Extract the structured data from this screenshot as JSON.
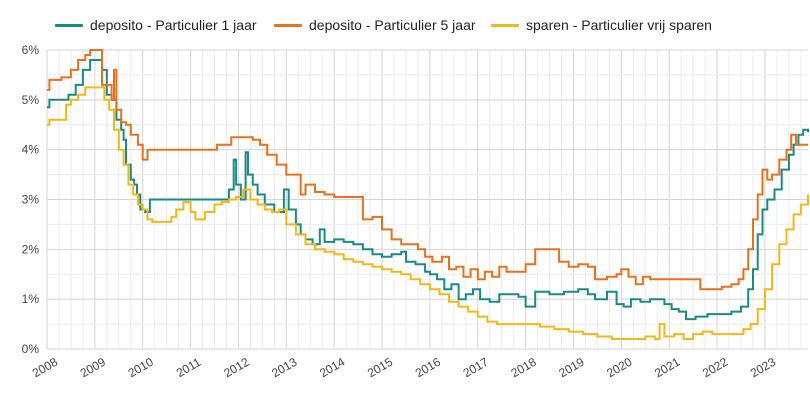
{
  "chart_data": {
    "type": "line",
    "title": "",
    "xlabel": "",
    "ylabel": "",
    "xlim": [
      2008,
      2023.9
    ],
    "ylim": [
      0,
      6
    ],
    "grid": true,
    "legend_position": "top",
    "y_ticks": [
      "0%",
      "1%",
      "2%",
      "3%",
      "4%",
      "5%",
      "6%"
    ],
    "x_ticks": [
      "2008",
      "2009",
      "2010",
      "2011",
      "2012",
      "2013",
      "2014",
      "2015",
      "2016",
      "2017",
      "2018",
      "2019",
      "2020",
      "2021",
      "2022",
      "2023"
    ],
    "series": [
      {
        "name": "deposito - Particulier 1 jaar",
        "color": "#1a8a86",
        "points": [
          [
            2008,
            4.85
          ],
          [
            2008.05,
            5.0
          ],
          [
            2008.3,
            5.0
          ],
          [
            2008.45,
            5.1
          ],
          [
            2008.6,
            5.3
          ],
          [
            2008.75,
            5.6
          ],
          [
            2008.9,
            5.8
          ],
          [
            2009.1,
            5.8
          ],
          [
            2009.15,
            5.6
          ],
          [
            2009.25,
            5.1
          ],
          [
            2009.35,
            5.0
          ],
          [
            2009.45,
            4.6
          ],
          [
            2009.55,
            4.4
          ],
          [
            2009.6,
            4.2
          ],
          [
            2009.65,
            3.7
          ],
          [
            2009.75,
            3.4
          ],
          [
            2009.82,
            3.3
          ],
          [
            2009.88,
            3.1
          ],
          [
            2009.95,
            2.8
          ],
          [
            2010.05,
            2.75
          ],
          [
            2010.15,
            3.0
          ],
          [
            2010.5,
            3.0
          ],
          [
            2010.85,
            3.0
          ],
          [
            2011.3,
            3.0
          ],
          [
            2011.5,
            3.0
          ],
          [
            2011.6,
            3.0
          ],
          [
            2011.8,
            3.2
          ],
          [
            2011.9,
            3.8
          ],
          [
            2011.95,
            3.3
          ],
          [
            2012.05,
            3.0
          ],
          [
            2012.15,
            3.95
          ],
          [
            2012.2,
            3.5
          ],
          [
            2012.3,
            3.3
          ],
          [
            2012.4,
            3.1
          ],
          [
            2012.55,
            2.9
          ],
          [
            2012.75,
            2.75
          ],
          [
            2012.95,
            3.2
          ],
          [
            2013.05,
            2.8
          ],
          [
            2013.2,
            2.5
          ],
          [
            2013.3,
            2.3
          ],
          [
            2013.4,
            2.2
          ],
          [
            2013.55,
            2.1
          ],
          [
            2013.7,
            2.4
          ],
          [
            2013.8,
            2.15
          ],
          [
            2014.0,
            2.2
          ],
          [
            2014.2,
            2.15
          ],
          [
            2014.4,
            2.1
          ],
          [
            2014.6,
            2.0
          ],
          [
            2014.8,
            1.9
          ],
          [
            2015.0,
            1.85
          ],
          [
            2015.2,
            1.9
          ],
          [
            2015.4,
            1.95
          ],
          [
            2015.5,
            1.75
          ],
          [
            2015.7,
            1.7
          ],
          [
            2015.9,
            1.55
          ],
          [
            2016.0,
            1.5
          ],
          [
            2016.15,
            1.4
          ],
          [
            2016.3,
            1.2
          ],
          [
            2016.45,
            1.3
          ],
          [
            2016.6,
            1.0
          ],
          [
            2016.75,
            1.1
          ],
          [
            2016.9,
            1.2
          ],
          [
            2017.05,
            1.0
          ],
          [
            2017.25,
            0.95
          ],
          [
            2017.45,
            1.1
          ],
          [
            2017.7,
            1.1
          ],
          [
            2017.85,
            1.05
          ],
          [
            2018.0,
            0.85
          ],
          [
            2018.2,
            1.15
          ],
          [
            2018.5,
            1.1
          ],
          [
            2018.8,
            1.15
          ],
          [
            2019.1,
            1.2
          ],
          [
            2019.3,
            1.1
          ],
          [
            2019.45,
            1.0
          ],
          [
            2019.7,
            1.15
          ],
          [
            2019.9,
            0.9
          ],
          [
            2020.05,
            0.85
          ],
          [
            2020.2,
            1.0
          ],
          [
            2020.4,
            0.95
          ],
          [
            2020.6,
            1.0
          ],
          [
            2020.9,
            0.9
          ],
          [
            2021.05,
            0.8
          ],
          [
            2021.2,
            0.75
          ],
          [
            2021.35,
            0.6
          ],
          [
            2021.55,
            0.65
          ],
          [
            2021.8,
            0.7
          ],
          [
            2022.1,
            0.7
          ],
          [
            2022.3,
            0.75
          ],
          [
            2022.5,
            0.85
          ],
          [
            2022.65,
            1.2
          ],
          [
            2022.75,
            1.6
          ],
          [
            2022.85,
            2.3
          ],
          [
            2022.95,
            2.8
          ],
          [
            2023.05,
            3.0
          ],
          [
            2023.2,
            3.2
          ],
          [
            2023.35,
            3.6
          ],
          [
            2023.5,
            3.9
          ],
          [
            2023.6,
            4.1
          ],
          [
            2023.7,
            4.3
          ],
          [
            2023.8,
            4.4
          ],
          [
            2023.9,
            4.35
          ]
        ]
      },
      {
        "name": "deposito - Particulier 5 jaar",
        "color": "#e8711f",
        "points": [
          [
            2008,
            5.2
          ],
          [
            2008.05,
            5.4
          ],
          [
            2008.3,
            5.45
          ],
          [
            2008.5,
            5.6
          ],
          [
            2008.65,
            5.8
          ],
          [
            2008.8,
            5.9
          ],
          [
            2008.9,
            6.0
          ],
          [
            2009.1,
            6.0
          ],
          [
            2009.15,
            5.3
          ],
          [
            2009.35,
            5.0
          ],
          [
            2009.4,
            5.6
          ],
          [
            2009.45,
            4.8
          ],
          [
            2009.55,
            4.55
          ],
          [
            2009.65,
            4.5
          ],
          [
            2009.75,
            4.3
          ],
          [
            2009.9,
            4.1
          ],
          [
            2010.0,
            3.8
          ],
          [
            2010.1,
            4.0
          ],
          [
            2010.5,
            4.0
          ],
          [
            2010.85,
            4.0
          ],
          [
            2011.3,
            4.0
          ],
          [
            2011.55,
            4.1
          ],
          [
            2011.7,
            4.1
          ],
          [
            2011.85,
            4.25
          ],
          [
            2012.05,
            4.25
          ],
          [
            2012.3,
            4.2
          ],
          [
            2012.45,
            4.1
          ],
          [
            2012.6,
            3.9
          ],
          [
            2012.8,
            3.7
          ],
          [
            2013.0,
            3.5
          ],
          [
            2013.2,
            3.5
          ],
          [
            2013.3,
            3.1
          ],
          [
            2013.4,
            3.3
          ],
          [
            2013.6,
            3.15
          ],
          [
            2013.8,
            3.1
          ],
          [
            2014.0,
            3.05
          ],
          [
            2014.3,
            3.05
          ],
          [
            2014.6,
            2.6
          ],
          [
            2014.8,
            2.65
          ],
          [
            2015.0,
            2.4
          ],
          [
            2015.2,
            2.2
          ],
          [
            2015.4,
            2.1
          ],
          [
            2015.6,
            2.1
          ],
          [
            2015.75,
            2.0
          ],
          [
            2015.9,
            1.85
          ],
          [
            2016.05,
            1.75
          ],
          [
            2016.25,
            1.85
          ],
          [
            2016.4,
            1.6
          ],
          [
            2016.55,
            1.65
          ],
          [
            2016.7,
            1.45
          ],
          [
            2016.85,
            1.6
          ],
          [
            2017.0,
            1.4
          ],
          [
            2017.15,
            1.55
          ],
          [
            2017.3,
            1.45
          ],
          [
            2017.45,
            1.65
          ],
          [
            2017.6,
            1.55
          ],
          [
            2017.8,
            1.55
          ],
          [
            2018.0,
            1.7
          ],
          [
            2018.2,
            2.0
          ],
          [
            2018.5,
            2.0
          ],
          [
            2018.7,
            1.75
          ],
          [
            2018.9,
            1.65
          ],
          [
            2019.1,
            1.7
          ],
          [
            2019.3,
            1.65
          ],
          [
            2019.45,
            1.4
          ],
          [
            2019.7,
            1.45
          ],
          [
            2019.9,
            1.5
          ],
          [
            2020.0,
            1.6
          ],
          [
            2020.15,
            1.45
          ],
          [
            2020.3,
            1.3
          ],
          [
            2020.45,
            1.45
          ],
          [
            2020.6,
            1.4
          ],
          [
            2020.9,
            1.4
          ],
          [
            2021.2,
            1.4
          ],
          [
            2021.5,
            1.4
          ],
          [
            2021.65,
            1.2
          ],
          [
            2021.85,
            1.2
          ],
          [
            2022.1,
            1.25
          ],
          [
            2022.3,
            1.3
          ],
          [
            2022.45,
            1.4
          ],
          [
            2022.55,
            1.6
          ],
          [
            2022.65,
            2.0
          ],
          [
            2022.75,
            2.6
          ],
          [
            2022.85,
            3.1
          ],
          [
            2022.95,
            3.6
          ],
          [
            2023.05,
            3.4
          ],
          [
            2023.15,
            3.5
          ],
          [
            2023.3,
            3.8
          ],
          [
            2023.45,
            4.0
          ],
          [
            2023.55,
            4.3
          ],
          [
            2023.65,
            4.1
          ],
          [
            2023.9,
            4.1
          ]
        ]
      },
      {
        "name": "sparen - Particulier vrij sparen",
        "color": "#f2b718",
        "points": [
          [
            2008,
            4.5
          ],
          [
            2008.05,
            4.6
          ],
          [
            2008.3,
            4.6
          ],
          [
            2008.4,
            4.9
          ],
          [
            2008.5,
            5.0
          ],
          [
            2008.65,
            5.1
          ],
          [
            2008.8,
            5.25
          ],
          [
            2009.1,
            5.25
          ],
          [
            2009.2,
            5.0
          ],
          [
            2009.3,
            4.8
          ],
          [
            2009.4,
            4.4
          ],
          [
            2009.5,
            4.0
          ],
          [
            2009.6,
            3.7
          ],
          [
            2009.7,
            3.3
          ],
          [
            2009.8,
            3.1
          ],
          [
            2009.9,
            2.9
          ],
          [
            2010.0,
            2.8
          ],
          [
            2010.1,
            2.6
          ],
          [
            2010.2,
            2.55
          ],
          [
            2010.4,
            2.55
          ],
          [
            2010.6,
            2.65
          ],
          [
            2010.7,
            2.8
          ],
          [
            2010.85,
            2.95
          ],
          [
            2011.0,
            2.75
          ],
          [
            2011.1,
            2.6
          ],
          [
            2011.3,
            2.75
          ],
          [
            2011.5,
            2.9
          ],
          [
            2011.65,
            2.95
          ],
          [
            2011.8,
            3.0
          ],
          [
            2011.95,
            3.05
          ],
          [
            2012.1,
            3.2
          ],
          [
            2012.25,
            3.0
          ],
          [
            2012.4,
            2.9
          ],
          [
            2012.55,
            2.8
          ],
          [
            2012.7,
            2.75
          ],
          [
            2012.85,
            2.8
          ],
          [
            2013.0,
            2.5
          ],
          [
            2013.2,
            2.3
          ],
          [
            2013.4,
            2.1
          ],
          [
            2013.6,
            2.0
          ],
          [
            2013.8,
            1.95
          ],
          [
            2014.0,
            1.9
          ],
          [
            2014.2,
            1.8
          ],
          [
            2014.4,
            1.75
          ],
          [
            2014.6,
            1.7
          ],
          [
            2014.8,
            1.65
          ],
          [
            2015.0,
            1.6
          ],
          [
            2015.2,
            1.55
          ],
          [
            2015.4,
            1.5
          ],
          [
            2015.6,
            1.4
          ],
          [
            2015.8,
            1.3
          ],
          [
            2016.0,
            1.2
          ],
          [
            2016.2,
            1.1
          ],
          [
            2016.4,
            0.95
          ],
          [
            2016.6,
            0.85
          ],
          [
            2016.8,
            0.75
          ],
          [
            2017.0,
            0.65
          ],
          [
            2017.2,
            0.55
          ],
          [
            2017.4,
            0.5
          ],
          [
            2017.7,
            0.5
          ],
          [
            2018.0,
            0.5
          ],
          [
            2018.3,
            0.45
          ],
          [
            2018.6,
            0.4
          ],
          [
            2018.9,
            0.35
          ],
          [
            2019.2,
            0.3
          ],
          [
            2019.5,
            0.25
          ],
          [
            2019.8,
            0.2
          ],
          [
            2020.1,
            0.2
          ],
          [
            2020.3,
            0.2
          ],
          [
            2020.5,
            0.25
          ],
          [
            2020.7,
            0.2
          ],
          [
            2020.8,
            0.5
          ],
          [
            2020.9,
            0.25
          ],
          [
            2021.1,
            0.3
          ],
          [
            2021.3,
            0.2
          ],
          [
            2021.5,
            0.3
          ],
          [
            2021.7,
            0.35
          ],
          [
            2021.9,
            0.3
          ],
          [
            2022.2,
            0.3
          ],
          [
            2022.4,
            0.3
          ],
          [
            2022.55,
            0.4
          ],
          [
            2022.7,
            0.5
          ],
          [
            2022.85,
            0.8
          ],
          [
            2023.0,
            1.2
          ],
          [
            2023.15,
            1.7
          ],
          [
            2023.3,
            2.1
          ],
          [
            2023.45,
            2.4
          ],
          [
            2023.6,
            2.7
          ],
          [
            2023.75,
            2.9
          ],
          [
            2023.9,
            3.1
          ]
        ]
      }
    ]
  }
}
